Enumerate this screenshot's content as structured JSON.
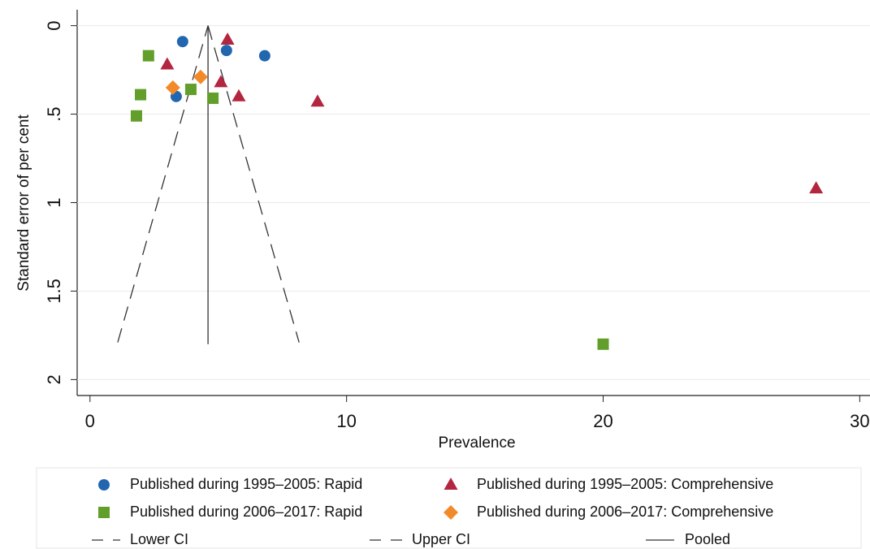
{
  "chart_data": {
    "type": "scatter",
    "x_label": "Prevalence",
    "y_label": "Standard error of per cent",
    "xlim": [
      -0.5,
      30.4
    ],
    "ylim": [
      -0.09,
      2.09
    ],
    "y_inverted": true,
    "xticks": [
      0,
      10,
      20,
      30
    ],
    "yticks": [
      0,
      {
        "value": 0.5,
        "label": ".5"
      },
      1,
      1.5,
      2
    ],
    "grid": true,
    "series": [
      {
        "name": "Published during 1995–2005: Rapid",
        "color": "#2266b0",
        "marker": "circle",
        "x": [
          3.61,
          5.32,
          6.81,
          3.36
        ],
        "values": [
          0.09,
          0.14,
          0.17,
          0.4
        ]
      },
      {
        "name": "Published during 1995–2005: Comprehensive",
        "color": "#b3263f",
        "marker": "triangle",
        "x": [
          5.36,
          3.01,
          5.1,
          5.8,
          8.87,
          28.3
        ],
        "values": [
          0.08,
          0.22,
          0.32,
          0.4,
          0.43,
          0.92
        ]
      },
      {
        "name": "Published during 2006–2017: Rapid",
        "color": "#629e2a",
        "marker": "square",
        "x": [
          2.28,
          1.97,
          1.81,
          3.93,
          4.79,
          20.0
        ],
        "values": [
          0.17,
          0.39,
          0.51,
          0.36,
          0.41,
          1.8
        ]
      },
      {
        "name": "Published during 2006–2017: Comprehensive",
        "color": "#f28a2a",
        "marker": "diamond",
        "x": [
          3.23,
          4.31
        ],
        "values": [
          0.35,
          0.29
        ]
      }
    ],
    "lines": [
      {
        "name": "Lower CI",
        "dash": "18 10",
        "x": [
          1.08,
          4.6
        ],
        "values": [
          1.79,
          0
        ]
      },
      {
        "name": "Upper CI",
        "dash": "18 10",
        "x": [
          4.6,
          8.15
        ],
        "values": [
          0,
          1.79
        ]
      },
      {
        "name": "Pooled",
        "dash": "none",
        "x": [
          4.6,
          4.6
        ],
        "values": [
          0,
          1.8
        ]
      }
    ]
  }
}
